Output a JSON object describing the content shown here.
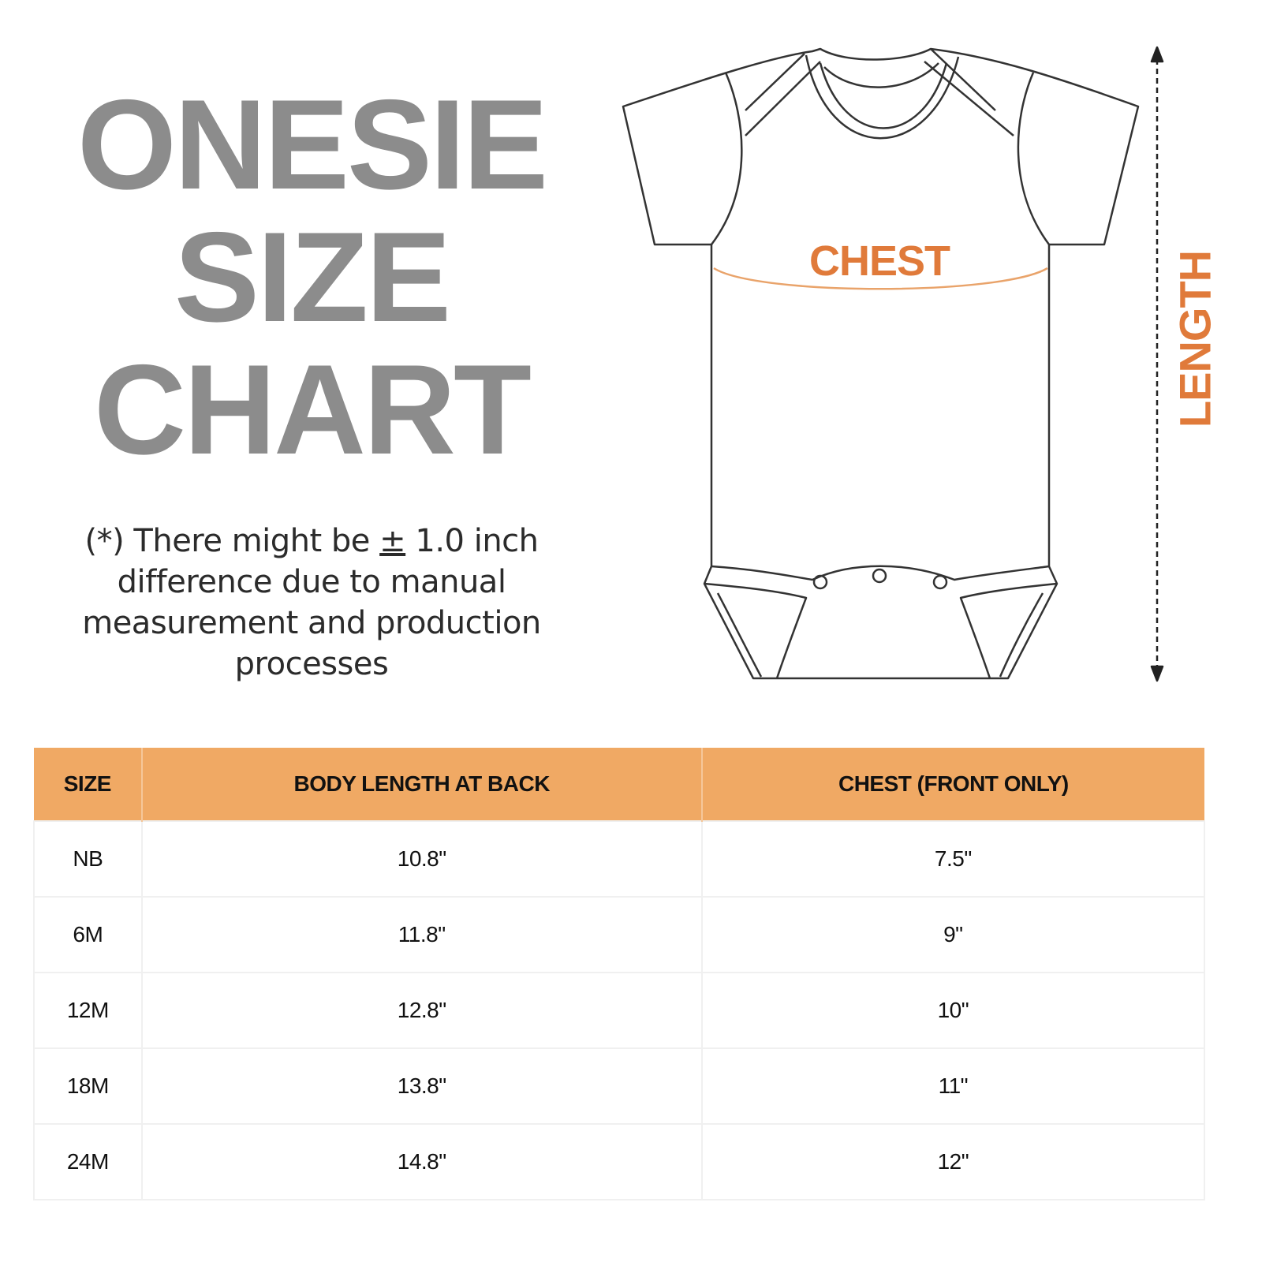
{
  "title": {
    "lines": [
      "ONESIE",
      "SIZE",
      "CHART"
    ]
  },
  "note": {
    "prefix": "(*) There might be ",
    "plus_minus": "±",
    "line1_rest": " 1.0 inch",
    "line2": "difference due to manual",
    "line3": "measurement and production",
    "line4": "processes"
  },
  "diagram": {
    "chest_label": "CHEST",
    "length_label": "LENGTH",
    "accent_color": "#e07a3a"
  },
  "table": {
    "header_color": "#f0a964",
    "headers": [
      "SIZE",
      "BODY LENGTH AT BACK",
      "CHEST (FRONT ONLY)"
    ],
    "rows": [
      [
        "NB",
        "10.8\"",
        "7.5\""
      ],
      [
        "6M",
        "11.8\"",
        "9\""
      ],
      [
        "12M",
        "12.8\"",
        "10\""
      ],
      [
        "18M",
        "13.8\"",
        "11\""
      ],
      [
        "24M",
        "14.8\"",
        "12\""
      ]
    ]
  }
}
